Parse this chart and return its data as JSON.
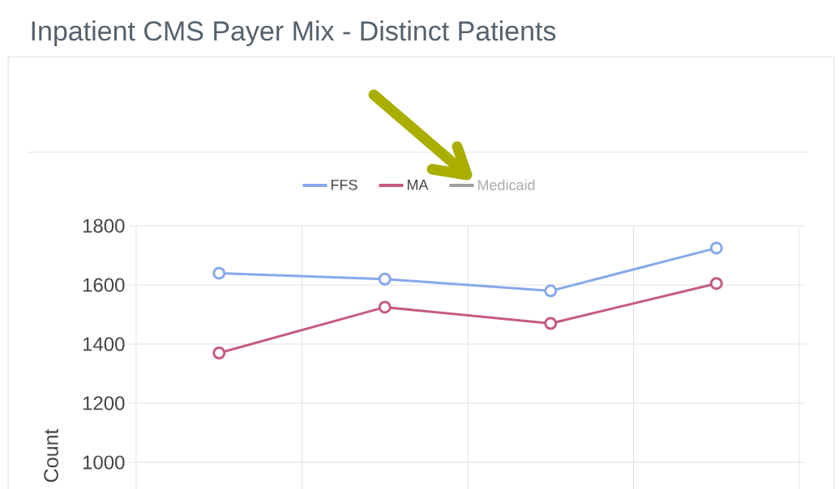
{
  "chart_data": {
    "type": "line",
    "title": "Inpatient CMS Payer Mix - Distinct Patients",
    "ylabel": "Count",
    "categories": [
      null,
      null,
      null,
      null
    ],
    "series": [
      {
        "name": "FFS",
        "color": "#87a8eb",
        "values": [
          1640,
          1620,
          1580,
          1725
        ]
      },
      {
        "name": "MA",
        "color": "#c45b7d",
        "values": [
          1370,
          1525,
          1470,
          1605
        ]
      },
      {
        "name": "Medicaid",
        "color": "#a0a0a0",
        "values": [
          null,
          null,
          null,
          null
        ]
      }
    ],
    "ylim": [
      910,
      1800
    ],
    "yticks": [
      1000,
      1200,
      1400,
      1600,
      1800
    ],
    "grid": true,
    "legend": "top",
    "marker": "circle",
    "line_style": "solid"
  }
}
